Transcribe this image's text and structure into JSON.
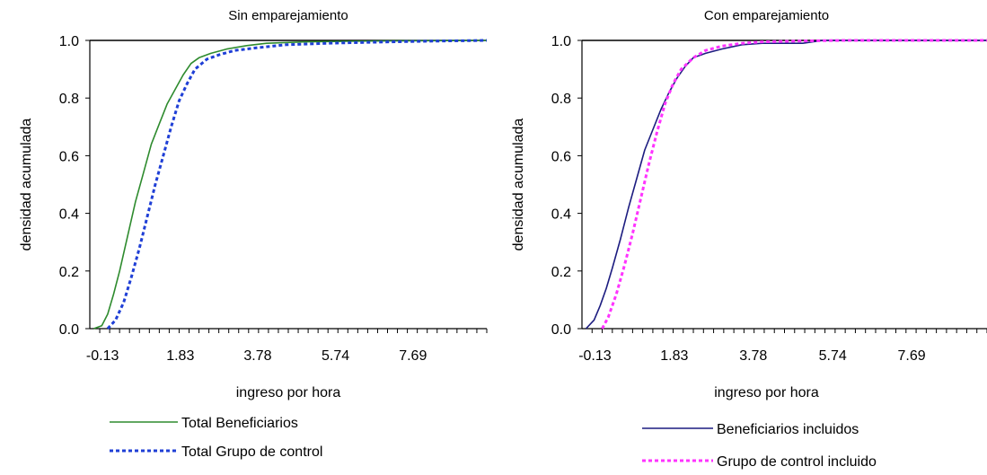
{
  "chart_data": [
    {
      "type": "line",
      "title": "Sin emparejamiento",
      "xlabel": "ingreso por hora",
      "ylabel": "densidad acumulada",
      "xlim": [
        -0.45,
        9.55
      ],
      "ylim": [
        0,
        1
      ],
      "x_tick_labels": [
        "-0.13",
        "1.83",
        "3.78",
        "5.74",
        "7.69"
      ],
      "y_tick_labels": [
        "0.0",
        "0.2",
        "0.4",
        "0.6",
        "0.8",
        "1.0"
      ],
      "grid": false,
      "legend_position": "bottom",
      "series": [
        {
          "name": "Total Beneficiarios",
          "color": "#2e8b2e",
          "style": "solid",
          "x": [
            -0.35,
            -0.15,
            0.0,
            0.15,
            0.3,
            0.5,
            0.7,
            0.9,
            1.1,
            1.3,
            1.5,
            1.7,
            1.9,
            2.1,
            2.3,
            2.6,
            3.0,
            3.5,
            4.0,
            5.0,
            6.0,
            7.0,
            8.0,
            9.55
          ],
          "y": [
            0.0,
            0.01,
            0.05,
            0.12,
            0.2,
            0.32,
            0.44,
            0.54,
            0.64,
            0.71,
            0.78,
            0.83,
            0.88,
            0.92,
            0.94,
            0.955,
            0.97,
            0.982,
            0.99,
            0.995,
            0.997,
            0.998,
            0.999,
            1.0
          ]
        },
        {
          "name": "Total Grupo de control",
          "color": "#1f3fd6",
          "style": "dashed",
          "x": [
            0.0,
            0.2,
            0.4,
            0.6,
            0.8,
            1.0,
            1.2,
            1.4,
            1.6,
            1.8,
            2.0,
            2.2,
            2.5,
            2.8,
            3.2,
            3.8,
            4.5,
            5.5,
            6.5,
            7.5,
            8.5,
            9.55
          ],
          "y": [
            0.0,
            0.03,
            0.09,
            0.18,
            0.28,
            0.39,
            0.5,
            0.6,
            0.7,
            0.79,
            0.85,
            0.9,
            0.935,
            0.95,
            0.965,
            0.975,
            0.985,
            0.99,
            0.993,
            0.996,
            0.998,
            1.0
          ]
        }
      ]
    },
    {
      "type": "line",
      "title": "Con emparejamiento",
      "xlabel": "ingreso por hora",
      "ylabel": "densidad acumulada",
      "xlim": [
        -0.45,
        9.55
      ],
      "ylim": [
        0,
        1
      ],
      "x_tick_labels": [
        "-0.13",
        "1.83",
        "3.78",
        "5.74",
        "7.69"
      ],
      "y_tick_labels": [
        "0.0",
        "0.2",
        "0.4",
        "0.6",
        "0.8",
        "1.0"
      ],
      "grid": false,
      "legend_position": "bottom",
      "series": [
        {
          "name": "Beneficiarios incluidos",
          "color": "#1c1c80",
          "style": "solid",
          "x": [
            -0.35,
            -0.15,
            0.0,
            0.15,
            0.3,
            0.5,
            0.7,
            0.9,
            1.1,
            1.3,
            1.5,
            1.7,
            1.9,
            2.1,
            2.3,
            2.6,
            3.0,
            3.5,
            4.0,
            5.0,
            5.5,
            6.0,
            7.0,
            8.0,
            9.55
          ],
          "y": [
            0.0,
            0.03,
            0.08,
            0.14,
            0.21,
            0.31,
            0.42,
            0.52,
            0.62,
            0.69,
            0.76,
            0.82,
            0.87,
            0.91,
            0.94,
            0.955,
            0.97,
            0.985,
            0.99,
            0.99,
            1.0,
            1.0,
            1.0,
            1.0,
            1.0
          ]
        },
        {
          "name": "Grupo de control incluido",
          "color": "#ff33ff",
          "style": "dashed",
          "x": [
            0.05,
            0.2,
            0.4,
            0.6,
            0.8,
            1.0,
            1.2,
            1.4,
            1.6,
            1.8,
            2.0,
            2.3,
            2.6,
            3.0,
            3.5,
            4.0,
            5.0,
            6.0,
            7.0,
            8.0,
            9.55
          ],
          "y": [
            0.0,
            0.04,
            0.12,
            0.22,
            0.33,
            0.45,
            0.57,
            0.68,
            0.78,
            0.85,
            0.9,
            0.94,
            0.965,
            0.98,
            0.99,
            0.995,
            0.998,
            1.0,
            1.0,
            1.0,
            1.0
          ]
        }
      ]
    }
  ]
}
